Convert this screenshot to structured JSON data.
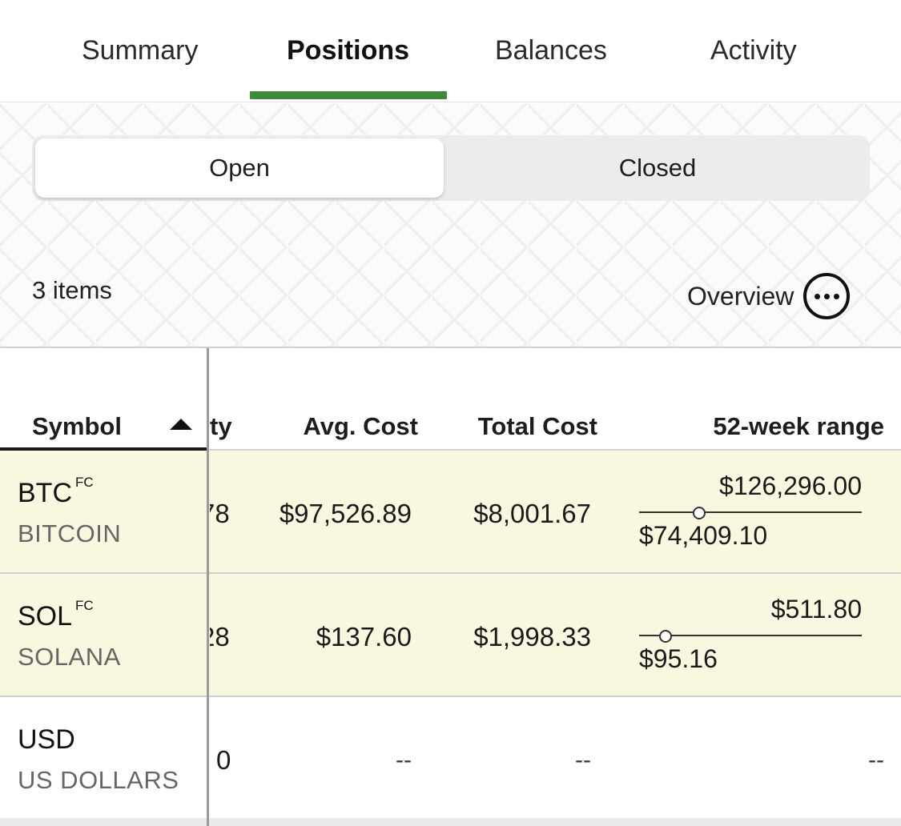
{
  "tabs": [
    {
      "label": "Summary"
    },
    {
      "label": "Positions"
    },
    {
      "label": "Balances"
    },
    {
      "label": "Activity"
    }
  ],
  "segment": {
    "open": "Open",
    "closed": "Closed",
    "selected": "Open"
  },
  "list": {
    "count_label": "3 items",
    "overview_label": "Overview"
  },
  "table": {
    "headers": {
      "symbol": "Symbol",
      "quantity": "ty",
      "avg_cost": "Avg. Cost",
      "total_cost": "Total Cost",
      "range": "52-week range"
    },
    "rows": [
      {
        "symbol": "BTC",
        "badge": "FC",
        "name": "BITCOIN",
        "quantity": "78",
        "avg_cost": "$97,526.89",
        "total_cost": "$8,001.67",
        "range_high": "$126,296.00",
        "range_low": "$74,409.10",
        "range_position": 0.27
      },
      {
        "symbol": "SOL",
        "badge": "FC",
        "name": "SOLANA",
        "quantity": "28",
        "avg_cost": "$137.60",
        "total_cost": "$1,998.33",
        "range_high": "$511.80",
        "range_low": "$95.16",
        "range_position": 0.12
      },
      {
        "symbol": "USD",
        "badge": "",
        "name": "US DOLLARS",
        "quantity": "0",
        "avg_cost": "--",
        "total_cost": "--",
        "range": "--"
      }
    ]
  },
  "colors": {
    "accent": "#3f8a3a",
    "row_highlight": "#faf7e0"
  }
}
